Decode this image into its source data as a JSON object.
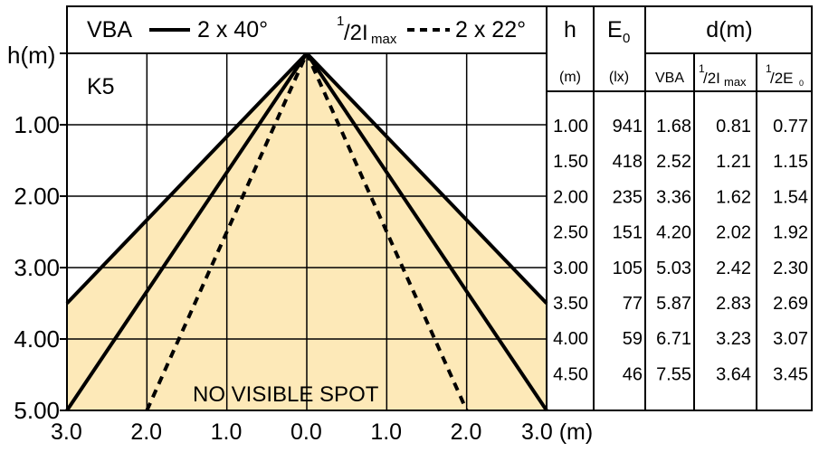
{
  "legend": {
    "series1_label": "VBA",
    "series1_value": "2 x 40°",
    "series2_sup": "1",
    "series2_main": "/2I",
    "series2_sub": "max",
    "series2_value": "2 x 22°"
  },
  "chart_label": "K5",
  "spot_note": "NO VISIBLE SPOT",
  "y_axis": {
    "title": "h(m)",
    "ticks": [
      "1.00",
      "2.00",
      "3.00",
      "4.00",
      "5.00"
    ]
  },
  "x_axis": {
    "ticks": [
      "3.0",
      "2.0",
      "1.0",
      "0.0",
      "1.0",
      "2.0",
      "3.0 (m)"
    ]
  },
  "table": {
    "col_h": "h",
    "col_h_unit": "(m)",
    "col_e_main": "E",
    "col_e_sub": "0",
    "col_e_unit": "(lx)",
    "col_d": "d(m)",
    "sub_vba": "VBA",
    "sub_imax_sup": "1",
    "sub_imax_main": "/2I",
    "sub_imax_sub": "max",
    "sub_e0_sup": "1",
    "sub_e0_main": "/2E",
    "sub_e0_sub": "0",
    "rows": [
      {
        "h": "1.00",
        "e0": "941",
        "vba": "1.68",
        "imax": "0.81",
        "e0half": "0.77"
      },
      {
        "h": "1.50",
        "e0": "418",
        "vba": "2.52",
        "imax": "1.21",
        "e0half": "1.15"
      },
      {
        "h": "2.00",
        "e0": "235",
        "vba": "3.36",
        "imax": "1.62",
        "e0half": "1.54"
      },
      {
        "h": "2.50",
        "e0": "151",
        "vba": "4.20",
        "imax": "2.02",
        "e0half": "1.92"
      },
      {
        "h": "3.00",
        "e0": "105",
        "vba": "5.03",
        "imax": "2.42",
        "e0half": "2.30"
      },
      {
        "h": "3.50",
        "e0": "77",
        "vba": "5.87",
        "imax": "2.83",
        "e0half": "2.69"
      },
      {
        "h": "4.00",
        "e0": "59",
        "vba": "6.71",
        "imax": "3.23",
        "e0half": "3.07"
      },
      {
        "h": "4.50",
        "e0": "46",
        "vba": "7.55",
        "imax": "3.64",
        "e0half": "3.45"
      }
    ]
  },
  "chart_data": {
    "type": "line",
    "x_range": [
      -3,
      3
    ],
    "y_range": [
      0,
      5
    ],
    "fill_color": "#fde9b8",
    "series": [
      {
        "name": "VBA 2 x 40°",
        "points": [
          [
            -3.0,
            3.5
          ],
          [
            0,
            0
          ],
          [
            3.0,
            3.5
          ]
        ]
      },
      {
        "name": "VBA 2 x 40°",
        "points": [
          [
            -3.0,
            5.0
          ],
          [
            0,
            0
          ],
          [
            3.0,
            5.0
          ]
        ]
      },
      {
        "name": "1/2Imax 2 x 22°",
        "points": [
          [
            -2.0,
            5.0
          ],
          [
            0,
            0
          ],
          [
            2.0,
            5.0
          ]
        ]
      }
    ]
  }
}
